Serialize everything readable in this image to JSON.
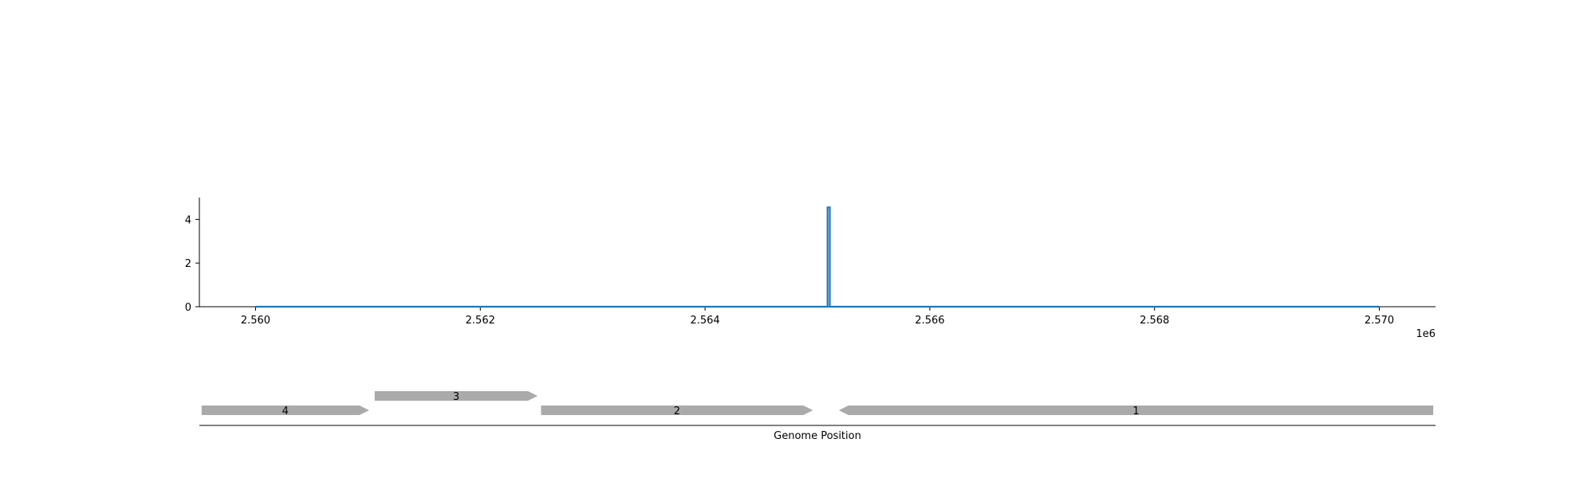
{
  "chart_data": [
    {
      "type": "line",
      "title": "",
      "xlabel": "",
      "ylabel": "",
      "xlim": [
        2559500,
        2570500
      ],
      "ylim": [
        0,
        5
      ],
      "x_offset_label": "1e6",
      "x_ticks": [
        2560000,
        2562000,
        2564000,
        2566000,
        2568000,
        2570000
      ],
      "x_tick_labels": [
        "2.560",
        "2.562",
        "2.564",
        "2.566",
        "2.568",
        "2.570"
      ],
      "y_ticks": [
        0,
        2,
        4
      ],
      "y_tick_labels": [
        "0",
        "2",
        "4"
      ],
      "grid": false,
      "series": [
        {
          "color": "#1f77b4",
          "points": [
            [
              2560000,
              0
            ],
            [
              2565090,
              0
            ],
            [
              2565090,
              4.55
            ],
            [
              2565110,
              4.55
            ],
            [
              2565110,
              0
            ],
            [
              2570000,
              0
            ]
          ]
        }
      ]
    },
    {
      "type": "gene_track",
      "xlabel": "Genome Position",
      "xlim": [
        2559500,
        2570500
      ],
      "features": [
        {
          "label": "4",
          "start": 2559520,
          "end": 2561010,
          "strand": "+",
          "row": 0,
          "color": "#aaaaaa"
        },
        {
          "label": "3",
          "start": 2561060,
          "end": 2562510,
          "strand": "+",
          "row": 1,
          "color": "#aaaaaa"
        },
        {
          "label": "2",
          "start": 2562540,
          "end": 2564960,
          "strand": "+",
          "row": 0,
          "color": "#aaaaaa"
        },
        {
          "label": "1",
          "start": 2565190,
          "end": 2570480,
          "strand": "-",
          "row": 0,
          "color": "#aaaaaa"
        }
      ]
    }
  ]
}
